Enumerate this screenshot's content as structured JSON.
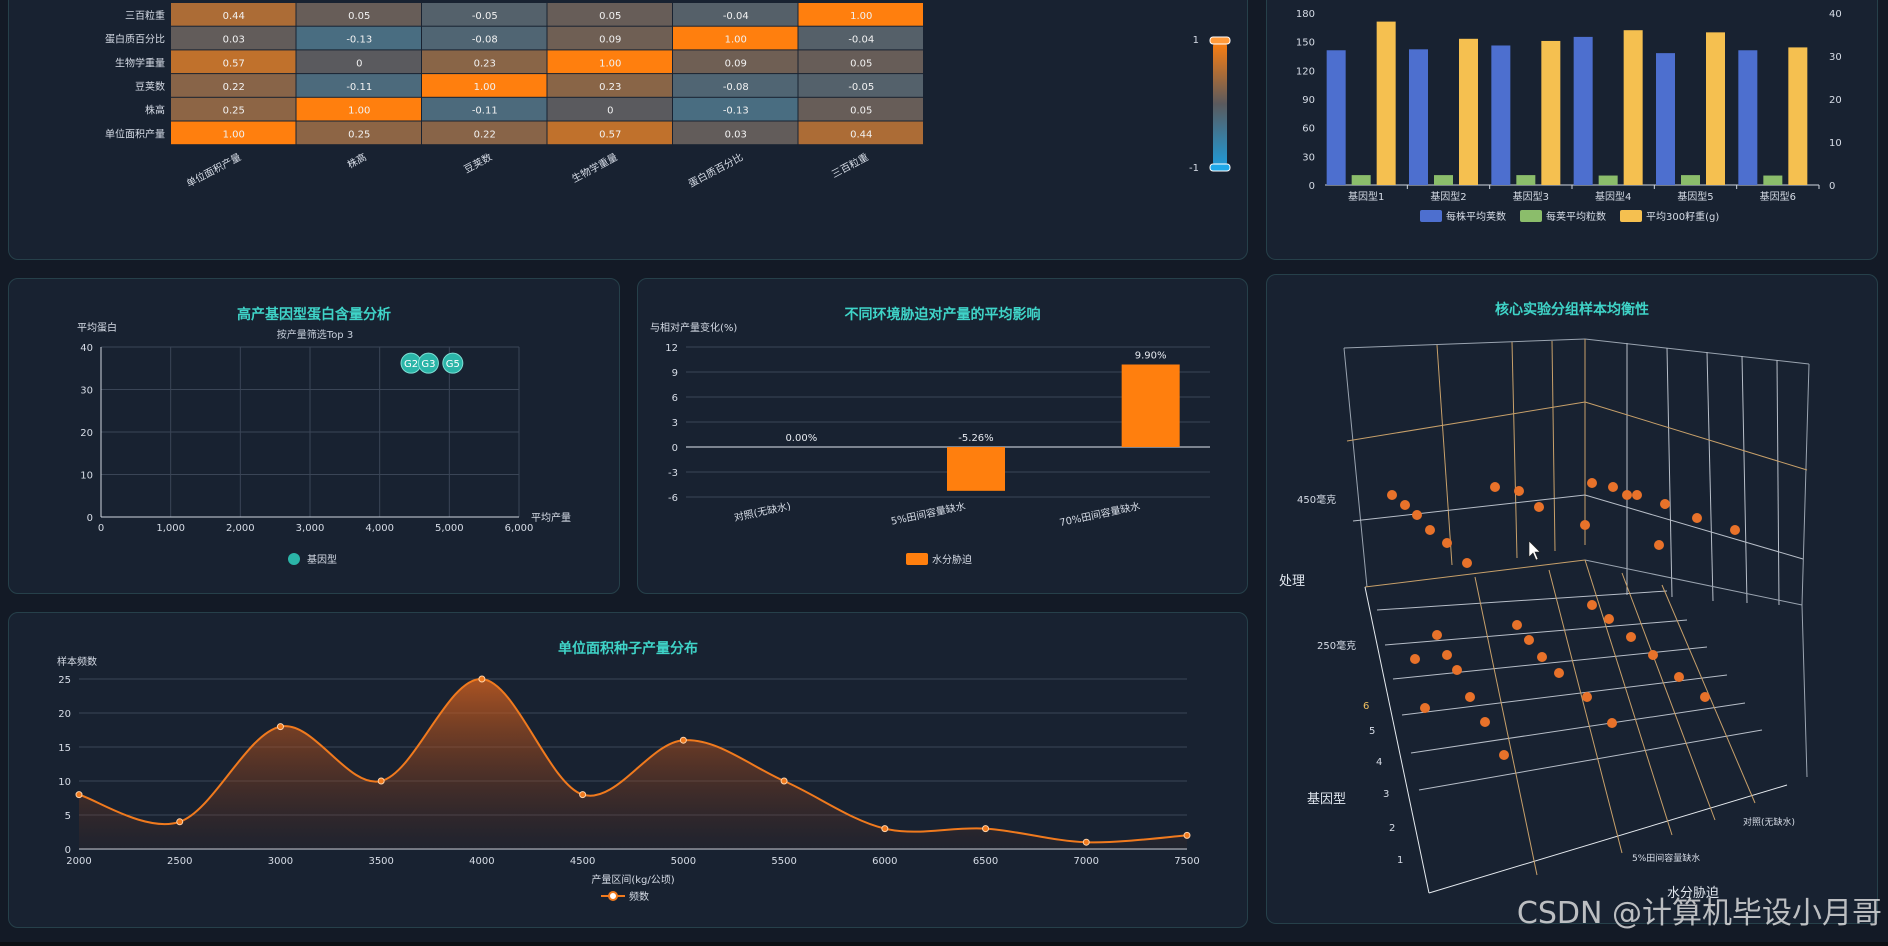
{
  "heatmap": {
    "row_labels": [
      "三百粒重",
      "蛋白质百分比",
      "生物学重量",
      "豆荚数",
      "株高",
      "单位面积产量"
    ],
    "col_labels": [
      "单位面积产量",
      "株高",
      "豆荚数",
      "生物学重量",
      "蛋白质百分比",
      "三百粒重"
    ],
    "values": [
      [
        0.44,
        0.05,
        -0.05,
        0.05,
        -0.04,
        1.0
      ],
      [
        0.03,
        -0.13,
        -0.08,
        0.09,
        1.0,
        -0.04
      ],
      [
        0.57,
        0,
        0.23,
        1.0,
        0.09,
        0.05
      ],
      [
        0.22,
        -0.11,
        1.0,
        0.23,
        -0.08,
        -0.05
      ],
      [
        0.25,
        1.0,
        -0.11,
        0,
        -0.13,
        0.05
      ],
      [
        1.0,
        0.25,
        0.22,
        0.57,
        0.03,
        0.44
      ]
    ],
    "display": [
      [
        "0.44",
        "0.05",
        "-0.05",
        "0.05",
        "-0.04",
        "1.00"
      ],
      [
        "0.03",
        "-0.13",
        "-0.08",
        "0.09",
        "1.00",
        "-0.04"
      ],
      [
        "0.57",
        "0",
        "0.23",
        "1.00",
        "0.09",
        "0.05"
      ],
      [
        "0.22",
        "-0.11",
        "1.00",
        "0.23",
        "-0.08",
        "-0.05"
      ],
      [
        "0.25",
        "1.00",
        "-0.11",
        "0",
        "-0.13",
        "0.05"
      ],
      [
        "1.00",
        "0.25",
        "0.22",
        "0.57",
        "0.03",
        "0.44"
      ]
    ],
    "scale_max": "1",
    "scale_min": "-1",
    "color_high": "#ff7f0e",
    "color_mid": "#5a5a5e",
    "color_low": "#1f9bd8"
  },
  "grouped_bar": {
    "categories": [
      "基因型1",
      "基因型2",
      "基因型3",
      "基因型4",
      "基因型5",
      "基因型6"
    ],
    "left_ticks": [
      "0",
      "30",
      "60",
      "90",
      "120",
      "150",
      "180"
    ],
    "right_ticks": [
      "0",
      "10",
      "20",
      "30",
      "40"
    ],
    "series": [
      {
        "name": "每株平均荚数",
        "values": [
          141,
          142,
          146,
          155,
          138,
          141
        ],
        "color": "#4d6fcf"
      },
      {
        "name": "每荚平均粒数",
        "values": [
          2.3,
          2.3,
          2.3,
          2.2,
          2.3,
          2.2
        ],
        "color": "#8bbd6b"
      },
      {
        "name": "平均300籽重(g)",
        "values": [
          38,
          34,
          33.5,
          36,
          35.5,
          32
        ],
        "color": "#f5c050"
      }
    ]
  },
  "scatter": {
    "title": "高产基因型蛋白含量分析",
    "subtitle": "按产量筛选Top 3",
    "ylabel": "平均蛋白",
    "xlabel": "平均产量",
    "x_ticks": [
      "0",
      "1,000",
      "2,000",
      "3,000",
      "4,000",
      "5,000",
      "6,000"
    ],
    "y_ticks": [
      "0",
      "10",
      "20",
      "30",
      "40"
    ],
    "points": [
      {
        "label": "G2",
        "x": 4450,
        "y": 36.2
      },
      {
        "label": "G3",
        "x": 4700,
        "y": 36.2
      },
      {
        "label": "G5",
        "x": 5050,
        "y": 36.2
      }
    ],
    "legend": "基因型",
    "color": "#2bb5a8"
  },
  "stress_bar": {
    "title": "不同环境胁迫对产量的平均影响",
    "ylabel": "与相对产量变化(%)",
    "y_ticks": [
      "-6",
      "-3",
      "0",
      "3",
      "6",
      "9",
      "12"
    ],
    "categories": [
      "对照(无缺水)",
      "5%田间容量缺水",
      "70%田间容量缺水"
    ],
    "values": [
      0.0,
      -5.26,
      9.9
    ],
    "labels": [
      "0.00%",
      "-5.26%",
      "9.90%"
    ],
    "legend": "水分胁迫",
    "color": "#ff7f0e"
  },
  "area": {
    "title": "单位面积种子产量分布",
    "ylabel": "样本频数",
    "xlabel": "产量区间(kg/公顷)",
    "legend": "频数",
    "x_ticks": [
      "2000",
      "2500",
      "3000",
      "3500",
      "4000",
      "4500",
      "5000",
      "5500",
      "6000",
      "6500",
      "7000",
      "7500"
    ],
    "y_ticks": [
      "0",
      "5",
      "10",
      "15",
      "20",
      "25"
    ],
    "x": [
      2000,
      2500,
      3000,
      3500,
      4000,
      4500,
      5000,
      5500,
      6000,
      6500,
      7000,
      7500
    ],
    "y": [
      8,
      4,
      18,
      10,
      25,
      8,
      16,
      10,
      3,
      3,
      1,
      2
    ],
    "color": "#f07a1e"
  },
  "scatter3d": {
    "title": "核心实验分组样本均衡性",
    "z_title": "处理",
    "z_labels": [
      "450毫克",
      "250毫克"
    ],
    "y_title": "基因型",
    "y_labels": [
      "1",
      "2",
      "3",
      "4",
      "5",
      "6"
    ],
    "x_title": "水分胁迫",
    "x_labels": [
      "对照(无缺水)",
      "5%田间容量缺水"
    ],
    "color": "#e8722a"
  },
  "watermark": "CSDN @计算机毕设小月哥"
}
